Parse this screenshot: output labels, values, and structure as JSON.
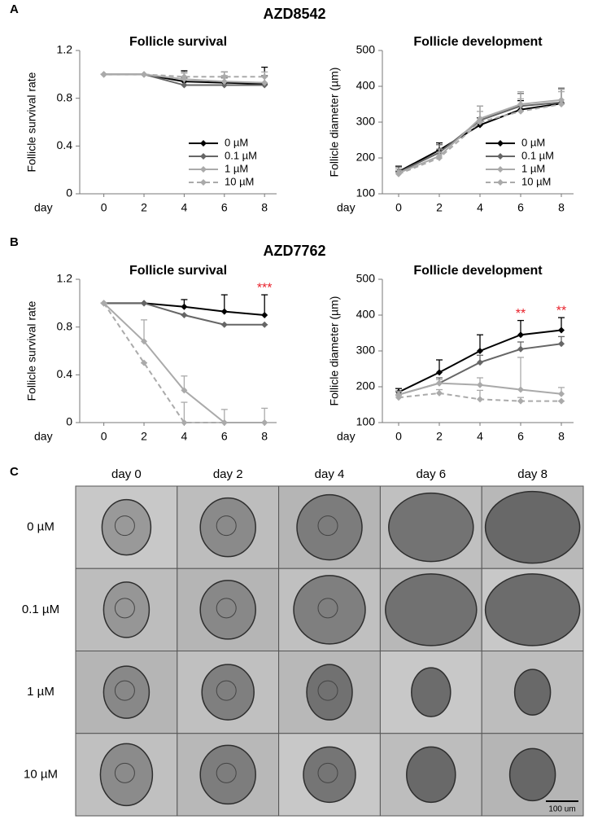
{
  "panel_labels": [
    "A",
    "B",
    "C"
  ],
  "section_titles": [
    "AZD8542",
    "AZD7762"
  ],
  "chart_data": [
    {
      "type": "line",
      "title": "Follicle survival",
      "ylabel": "Follicle survival rate",
      "xlabel": "day",
      "x": [
        0,
        2,
        4,
        6,
        8
      ],
      "xlim": [
        -1.2,
        8.6
      ],
      "xticks": [
        0,
        2,
        4,
        6,
        8
      ],
      "ylim": [
        0,
        1.2
      ],
      "yticks": [
        0,
        0.4,
        0.8,
        1.2
      ],
      "legend": "lower right",
      "series": [
        {
          "name": "0 µM",
          "color": "#000000",
          "line_style": "solid",
          "values": [
            1,
            1,
            0.94,
            0.93,
            0.92
          ],
          "errors": [
            0,
            0,
            0.09,
            0.09,
            0.14
          ]
        },
        {
          "name": "0.1 µM",
          "color": "#666666",
          "line_style": "solid",
          "values": [
            1,
            1,
            0.91,
            0.91,
            0.91
          ],
          "errors": [
            0,
            0,
            0.06,
            0.06,
            0.08
          ]
        },
        {
          "name": "1 µM",
          "color": "#aaaaaa",
          "line_style": "solid",
          "values": [
            1,
            1,
            0.96,
            0.94,
            0.93
          ],
          "errors": [
            0,
            0,
            0.05,
            0.05,
            0.05
          ]
        },
        {
          "name": "10 µM",
          "color": "#aaaaaa",
          "line_style": "dashed",
          "values": [
            1,
            1,
            0.98,
            0.98,
            0.98
          ],
          "errors": [
            0,
            0,
            0.04,
            0.04,
            0.04
          ]
        }
      ]
    },
    {
      "type": "line",
      "title": "Follicle development",
      "ylabel": "Follicle diameter (µm)",
      "xlabel": "day",
      "x": [
        0,
        2,
        4,
        6,
        8
      ],
      "xlim": [
        -0.8,
        8.6
      ],
      "xticks": [
        0,
        2,
        4,
        6,
        8
      ],
      "ylim": [
        100,
        500
      ],
      "yticks": [
        100,
        200,
        300,
        400,
        500
      ],
      "legend": "lower right",
      "series": [
        {
          "name": "0 µM",
          "color": "#000000",
          "line_style": "solid",
          "values": [
            162,
            222,
            292,
            335,
            352
          ],
          "errors": [
            15,
            20,
            20,
            25,
            40
          ]
        },
        {
          "name": "0.1 µM",
          "color": "#666666",
          "line_style": "solid",
          "values": [
            160,
            215,
            305,
            345,
            355
          ],
          "errors": [
            15,
            22,
            40,
            35,
            40
          ]
        },
        {
          "name": "1 µM",
          "color": "#aaaaaa",
          "line_style": "solid",
          "values": [
            158,
            205,
            310,
            350,
            362
          ],
          "errors": [
            12,
            20,
            35,
            35,
            30
          ]
        },
        {
          "name": "10 µM",
          "color": "#aaaaaa",
          "line_style": "dashed",
          "values": [
            155,
            200,
            300,
            330,
            350
          ],
          "errors": [
            10,
            15,
            30,
            35,
            35
          ]
        }
      ]
    },
    {
      "type": "line",
      "title": "Follicle survival",
      "ylabel": "Follicle survival rate",
      "xlabel": "day",
      "x": [
        0,
        2,
        4,
        6,
        8
      ],
      "xlim": [
        -1.2,
        8.6
      ],
      "xticks": [
        0,
        2,
        4,
        6,
        8
      ],
      "ylim": [
        0,
        1.2
      ],
      "yticks": [
        0,
        0.4,
        0.8,
        1.2
      ],
      "legend": "none",
      "annotations": [
        {
          "text": "***",
          "x": 8,
          "color": "#e8202a"
        }
      ],
      "series": [
        {
          "name": "0 µM",
          "color": "#000000",
          "line_style": "solid",
          "values": [
            1,
            1,
            0.97,
            0.93,
            0.9
          ],
          "errors": [
            0,
            0,
            0.06,
            0.14,
            0.17
          ]
        },
        {
          "name": "0.1 µM",
          "color": "#666666",
          "line_style": "solid",
          "values": [
            1,
            1,
            0.9,
            0.82,
            0.82
          ],
          "errors": [
            0,
            0,
            0,
            0,
            0
          ]
        },
        {
          "name": "1 µM",
          "color": "#aaaaaa",
          "line_style": "solid",
          "values": [
            1,
            0.68,
            0.27,
            0,
            0
          ],
          "errors": [
            0,
            0.18,
            0.12,
            0.11,
            0.12
          ]
        },
        {
          "name": "10 µM",
          "color": "#aaaaaa",
          "line_style": "dashed",
          "values": [
            1,
            0.5,
            0,
            0,
            0
          ],
          "errors": [
            0,
            0,
            0.17,
            0,
            0
          ]
        }
      ]
    },
    {
      "type": "line",
      "title": "Follicle development",
      "ylabel": "Follicle diameter (µm)",
      "xlabel": "day",
      "x": [
        0,
        2,
        4,
        6,
        8
      ],
      "xlim": [
        -0.8,
        8.6
      ],
      "xticks": [
        0,
        2,
        4,
        6,
        8
      ],
      "ylim": [
        100,
        500
      ],
      "yticks": [
        100,
        200,
        300,
        400,
        500
      ],
      "legend": "none",
      "annotations": [
        {
          "text": "**",
          "x": 6,
          "color": "#e8202a"
        },
        {
          "text": "**",
          "x": 8,
          "color": "#e8202a"
        }
      ],
      "series": [
        {
          "name": "0 µM",
          "color": "#000000",
          "line_style": "solid",
          "values": [
            185,
            240,
            300,
            345,
            358
          ],
          "errors": [
            10,
            35,
            45,
            40,
            35
          ]
        },
        {
          "name": "0.1 µM",
          "color": "#666666",
          "line_style": "solid",
          "values": [
            178,
            210,
            268,
            305,
            320
          ],
          "errors": [
            10,
            15,
            20,
            20,
            20
          ]
        },
        {
          "name": "1 µM",
          "color": "#aaaaaa",
          "line_style": "solid",
          "values": [
            178,
            210,
            205,
            192,
            180
          ],
          "errors": [
            8,
            10,
            20,
            90,
            18
          ]
        },
        {
          "name": "10 µM",
          "color": "#aaaaaa",
          "line_style": "dashed",
          "values": [
            170,
            182,
            165,
            160,
            160
          ],
          "errors": [
            5,
            10,
            25,
            10,
            0
          ]
        }
      ]
    }
  ],
  "image_grid": {
    "columns": [
      "day 0",
      "day 2",
      "day 4",
      "day 6",
      "day 8"
    ],
    "rows": [
      "0 µM",
      "0.1 µM",
      "1 µM",
      "10 µM"
    ],
    "scale_bar": "100 um"
  }
}
